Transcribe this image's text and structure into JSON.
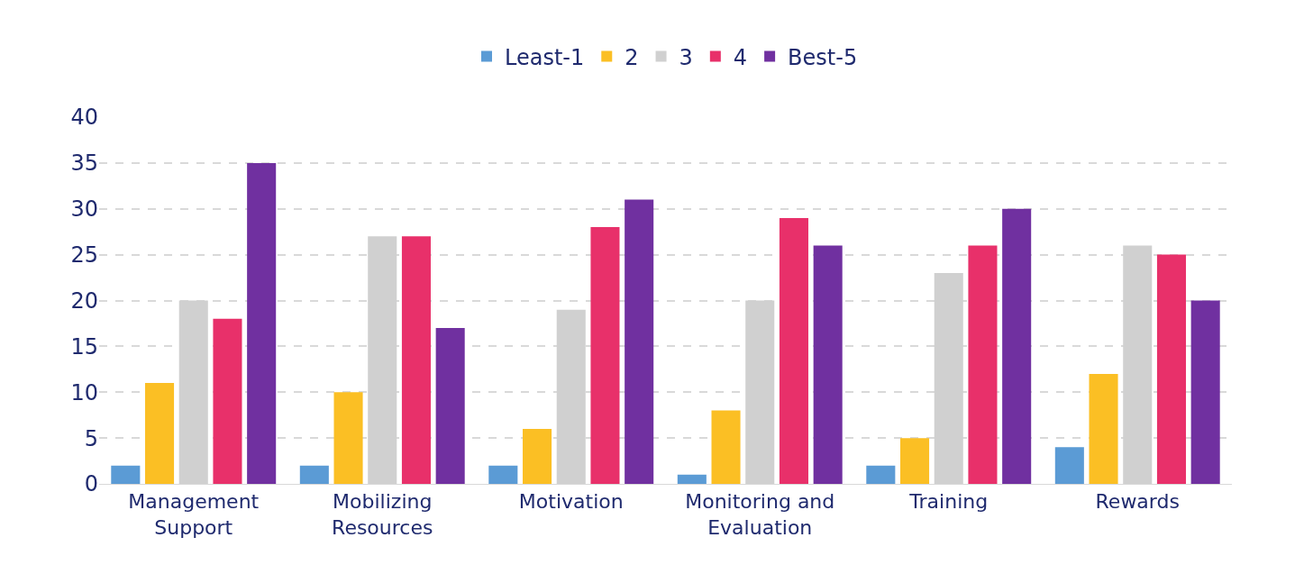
{
  "chart_data": {
    "type": "bar",
    "categories": [
      "Management Support",
      "Mobilizing Resources",
      "Motivation",
      "Monitoring and Evaluation",
      "Training",
      "Rewards"
    ],
    "series": [
      {
        "name": "Least-1",
        "color": "#5b9bd5",
        "values": [
          2,
          2,
          2,
          1,
          2,
          4
        ]
      },
      {
        "name": "2",
        "color": "#fbbf24",
        "values": [
          11,
          10,
          6,
          8,
          5,
          12
        ]
      },
      {
        "name": "3",
        "color": "#d0d0d0",
        "values": [
          20,
          27,
          19,
          20,
          23,
          26
        ]
      },
      {
        "name": "4",
        "color": "#e8306a",
        "values": [
          18,
          27,
          28,
          29,
          26,
          25
        ]
      },
      {
        "name": "Best-5",
        "color": "#7030a0",
        "values": [
          35,
          17,
          31,
          26,
          30,
          20
        ]
      }
    ],
    "ylim": [
      0,
      40
    ],
    "yticks": [
      0,
      5,
      10,
      15,
      20,
      25,
      30,
      35,
      40
    ],
    "grid": "y",
    "legend": "top"
  }
}
